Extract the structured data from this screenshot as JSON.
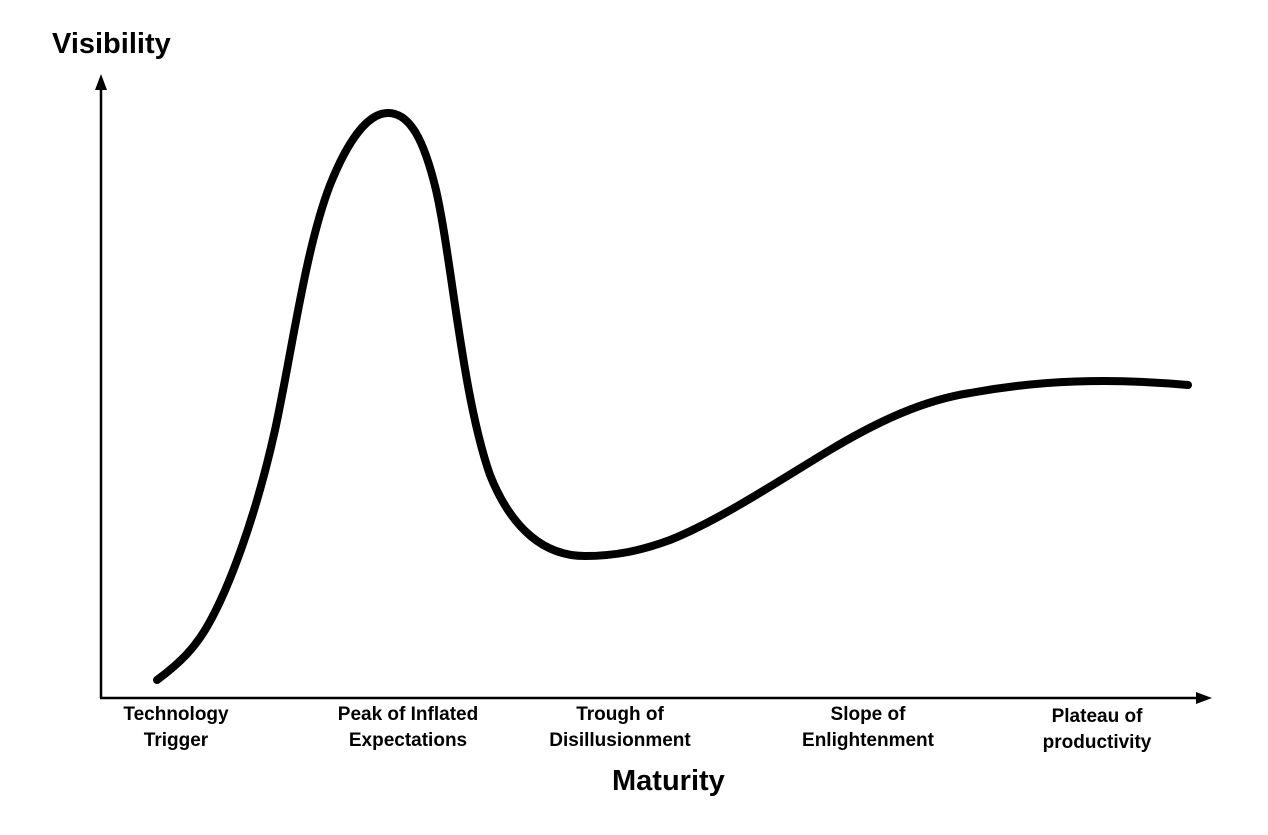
{
  "diagram": {
    "y_axis_label": "Visibility",
    "x_axis_label": "Maturity",
    "phases": [
      {
        "line1": "Technology",
        "line2": "Trigger"
      },
      {
        "line1": "Peak of Inflated",
        "line2": "Expectations"
      },
      {
        "line1": "Trough of",
        "line2": "Disillusionment"
      },
      {
        "line1": "Slope of",
        "line2": "Enlightenment"
      },
      {
        "line1": "Plateau of",
        "line2": "productivity"
      }
    ],
    "curve_color": "#000000",
    "axis_color": "#000000"
  }
}
